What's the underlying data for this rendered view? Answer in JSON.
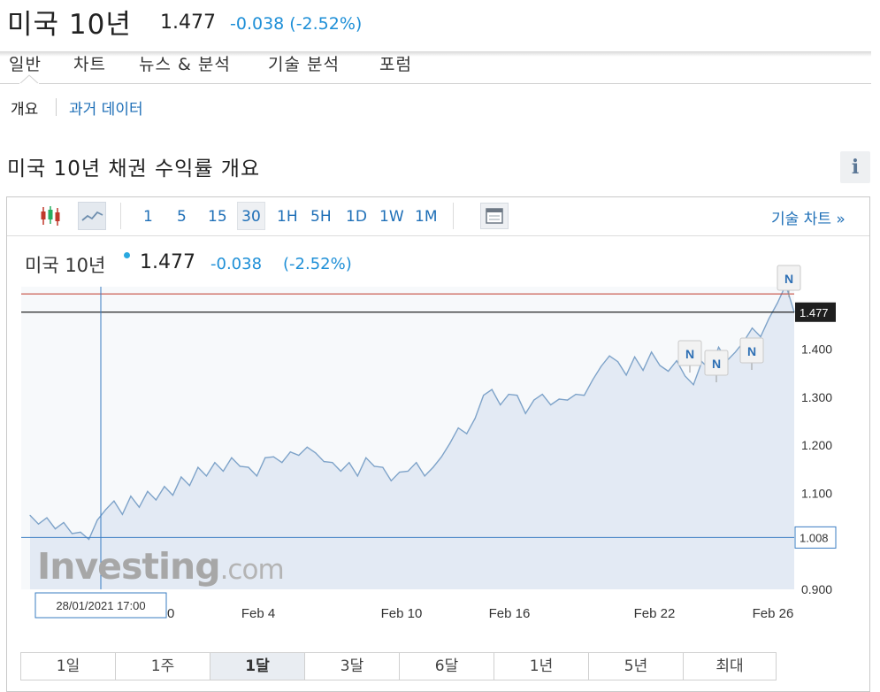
{
  "header": {
    "title": "미국 10년",
    "price": "1.477",
    "change": "-0.038 (-2.52%)"
  },
  "nav": {
    "tabs": [
      "일반",
      "차트",
      "뉴스 & 분석",
      "기술 분석",
      "포럼"
    ]
  },
  "subnav": {
    "active": "개요",
    "link": "과거 데이터"
  },
  "section": {
    "title": "미국 10년 채권 수익률 개요",
    "info": "i"
  },
  "toolbar": {
    "intervals": [
      "1",
      "5",
      "15",
      "30",
      "1H",
      "5H",
      "1D",
      "1W",
      "1M"
    ],
    "active_interval": "30",
    "tech_chart": "기술 차트 »",
    "icons": [
      "candlestick-icon",
      "line-chart-icon",
      "calendar-icon"
    ]
  },
  "chart_header": {
    "name": "미국 10년",
    "price": "1.477",
    "change": "-0.038",
    "change_pct": "(-2.52%)"
  },
  "chart_data": {
    "type": "area",
    "title": "",
    "xlabel": "",
    "ylabel": "",
    "x_ticks": [
      "Feb 4",
      "Feb 10",
      "Feb 16",
      "Feb 22",
      "Feb 26"
    ],
    "x_ticks_partial": "0",
    "y_ticks": [
      "1.400",
      "1.300",
      "1.200",
      "1.100",
      "0.900"
    ],
    "ylim": [
      0.9,
      1.53
    ],
    "current_value_label": "1.477",
    "crosshair_value_label": "1.008",
    "crosshair_date_label": "28/01/2021 17:00",
    "reference_lines": [
      1.477,
      1.515
    ],
    "news_marker_label": "N",
    "series": [
      {
        "values": [
          1.05,
          1.04,
          1.045,
          1.03,
          1.035,
          1.02,
          1.015,
          1.008,
          1.04,
          1.07,
          1.08,
          1.06,
          1.09,
          1.075,
          1.1,
          1.09,
          1.11,
          1.1,
          1.13,
          1.12,
          1.15,
          1.14,
          1.16,
          1.15,
          1.17,
          1.16,
          1.15,
          1.14,
          1.17,
          1.18,
          1.16,
          1.19,
          1.175,
          1.2,
          1.18,
          1.17,
          1.16,
          1.15,
          1.16,
          1.14,
          1.17,
          1.16,
          1.15,
          1.13,
          1.14,
          1.15,
          1.16,
          1.14,
          1.15,
          1.18,
          1.2,
          1.24,
          1.22,
          1.26,
          1.3,
          1.32,
          1.28,
          1.31,
          1.3,
          1.27,
          1.29,
          1.31,
          1.28,
          1.3,
          1.29,
          1.31,
          1.3,
          1.34,
          1.36,
          1.39,
          1.37,
          1.35,
          1.38,
          1.36,
          1.39,
          1.37,
          1.35,
          1.38,
          1.34,
          1.33,
          1.37,
          1.36,
          1.4,
          1.38,
          1.39,
          1.42,
          1.44,
          1.43,
          1.46,
          1.5,
          1.53,
          1.477
        ]
      }
    ],
    "logo": "Investing.com"
  },
  "ranges": {
    "items": [
      "1일",
      "1주",
      "1달",
      "3달",
      "6달",
      "1년",
      "5년",
      "최대"
    ],
    "active": "1달"
  }
}
